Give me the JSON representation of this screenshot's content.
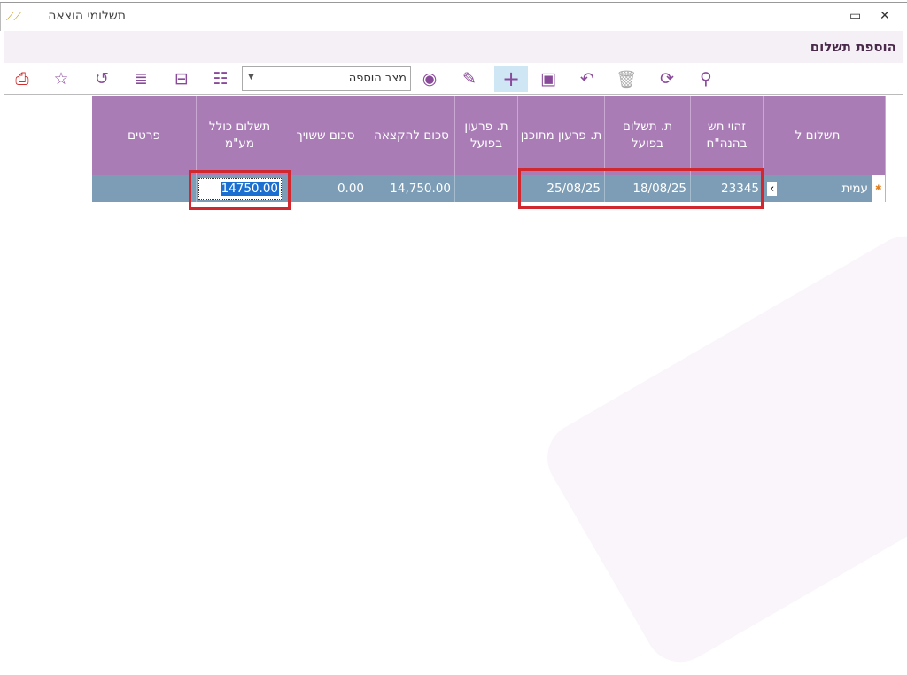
{
  "window": {
    "title": "תשלומי הוצאה",
    "close": "✕",
    "maximize": "▭"
  },
  "section": {
    "title": "הוספת תשלום"
  },
  "toolbar": {
    "mode_select": "מצב הוספה",
    "icons": [
      "pdf-icon",
      "star-icon",
      "favorite-back-icon",
      "align-icon",
      "columns-icon",
      "checklist-icon",
      "view-icon",
      "edit-icon",
      "add-icon",
      "save-icon",
      "undo-icon",
      "delete-icon",
      "refresh-icon",
      "search-icon"
    ]
  },
  "grid": {
    "columns": [
      "תשלום ל",
      "זהוי תש בהנה\"ח",
      "ת. תשלום בפועל",
      "ת. פרעון מתוכנן",
      "ת. פרעון בפועל",
      "סכום להקצאה",
      "סכום ששויך",
      "תשלום כולל מע\"מ",
      "פרטים"
    ],
    "rows": [
      {
        "payee": "עמית",
        "id": "23345",
        "paid_date": "18/08/25",
        "planned_date": "25/08/25",
        "actual_date": "",
        "allocate": "14,750.00",
        "assigned": "0.00",
        "total": "14750.00",
        "details": ""
      }
    ]
  },
  "colors": {
    "header": "#a97cb6",
    "row": "#7c9db5",
    "highlight": "#d0282e",
    "accent": "#8a4a9a"
  }
}
